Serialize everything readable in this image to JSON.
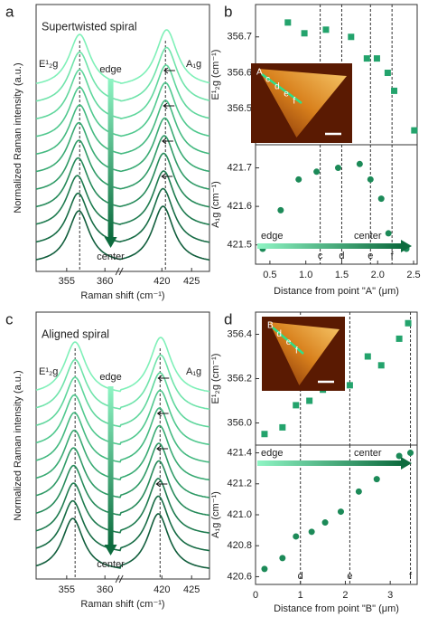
{
  "chart_data": [
    {
      "type": "spectra",
      "panel_label": "a",
      "title": "Supertwisted spiral",
      "xlabel": "Raman shift (cm⁻¹)",
      "ylabel": "Normalized Raman intensity (a.u.)",
      "peak_labels": [
        "E¹₂g",
        "A₁g"
      ],
      "annotations": [
        "edge",
        "center"
      ],
      "x_segments": [
        {
          "xlim": [
            351,
            362
          ],
          "xticks": [
            355,
            360
          ]
        },
        {
          "xlim": [
            413,
            428
          ],
          "xticks": [
            420,
            425
          ]
        }
      ],
      "dashed_lines": [
        356.7,
        420.6
      ],
      "series": [
        {
          "color": "#7ff0b8",
          "values": [
            356.7,
            420.8
          ]
        },
        {
          "color": "#6fe3aa",
          "values": [
            356.7,
            420.8
          ]
        },
        {
          "color": "#5fd69c",
          "values": [
            356.7,
            420.7
          ]
        },
        {
          "color": "#50c88e",
          "values": [
            356.7,
            420.6
          ]
        },
        {
          "color": "#44b980",
          "values": [
            356.7,
            420.6
          ]
        },
        {
          "color": "#39aa73",
          "values": [
            356.6,
            420.5
          ]
        },
        {
          "color": "#2f9a66",
          "values": [
            356.6,
            420.4
          ]
        },
        {
          "color": "#268a5a",
          "values": [
            356.5,
            420.3
          ]
        },
        {
          "color": "#1e7b4f",
          "values": [
            356.4,
            420.3
          ]
        },
        {
          "color": "#176c45",
          "values": [
            356.5,
            420.2
          ]
        },
        {
          "color": "#115e3c",
          "values": [
            356.6,
            420.2
          ]
        }
      ]
    },
    {
      "type": "scatter",
      "panel_label": "b",
      "xlabel": "Distance from point \"A\" (μm)",
      "xlim": [
        0.3,
        2.55
      ],
      "xticks": [
        0.5,
        {
          "value": 1,
          "label": "1.0"
        },
        1.5,
        {
          "value": 2,
          "label": "2.0"
        },
        2.5
      ],
      "vlines": [
        {
          "value": 1.2,
          "label": "c"
        },
        {
          "value": 1.5,
          "label": "d"
        },
        {
          "value": 1.9,
          "label": "e"
        },
        {
          "value": 2.2,
          "label": "f"
        }
      ],
      "inset_labels": [
        "A",
        "c",
        "d",
        "e",
        "f"
      ],
      "annotations": [
        "edge",
        "center"
      ],
      "subplots": [
        {
          "ylabel": "E¹₂g (cm⁻¹)",
          "ylim": [
            356.4,
            356.79
          ],
          "yticks": [
            356.5,
            356.6,
            356.7
          ],
          "marker": "square",
          "color": "#23a36c",
          "x": [
            0.75,
            0.98,
            1.28,
            1.63,
            1.85,
            1.99,
            2.14,
            2.23,
            2.51
          ],
          "values": [
            356.74,
            356.71,
            356.72,
            356.7,
            356.64,
            356.64,
            356.6,
            356.55,
            356.44
          ]
        },
        {
          "ylabel": "A₁g (cm⁻¹)",
          "ylim": [
            421.45,
            421.76
          ],
          "yticks": [
            421.5,
            421.6,
            421.7
          ],
          "marker": "circle",
          "color": "#1c8a58",
          "x": [
            0.4,
            0.65,
            0.9,
            1.15,
            1.45,
            1.75,
            1.9,
            2.05,
            2.15,
            2.4
          ],
          "values": [
            421.49,
            421.59,
            421.67,
            421.69,
            421.7,
            421.71,
            421.67,
            421.62,
            421.53,
            421.49
          ]
        }
      ]
    },
    {
      "type": "spectra",
      "panel_label": "c",
      "title": "Aligned spiral",
      "xlabel": "Raman shift (cm⁻¹)",
      "ylabel": "Normalized Raman intensity (a.u.)",
      "peak_labels": [
        "E¹₂g",
        "A₁g"
      ],
      "annotations": [
        "edge",
        "center"
      ],
      "x_segments": [
        {
          "xlim": [
            351,
            362
          ],
          "xticks": [
            355,
            360
          ]
        },
        {
          "xlim": [
            413,
            428
          ],
          "xticks": [
            420,
            425
          ]
        }
      ],
      "dashed_lines": [
        356.1,
        419.7
      ],
      "series": [
        {
          "color": "#7ff0b8",
          "values": [
            356.1,
            419.8
          ]
        },
        {
          "color": "#6fe3aa",
          "values": [
            356.1,
            419.8
          ]
        },
        {
          "color": "#5fd69c",
          "values": [
            356.1,
            419.7
          ]
        },
        {
          "color": "#50c88e",
          "values": [
            356.0,
            419.7
          ]
        },
        {
          "color": "#44b980",
          "values": [
            356.0,
            419.6
          ]
        },
        {
          "color": "#39aa73",
          "values": [
            356.0,
            419.6
          ]
        },
        {
          "color": "#2f9a66",
          "values": [
            355.9,
            419.5
          ]
        },
        {
          "color": "#268a5a",
          "values": [
            355.9,
            419.5
          ]
        },
        {
          "color": "#1e7b4f",
          "values": [
            355.9,
            419.4
          ]
        },
        {
          "color": "#176c45",
          "values": [
            355.8,
            419.4
          ]
        },
        {
          "color": "#115e3c",
          "values": [
            355.8,
            419.4
          ]
        }
      ]
    },
    {
      "type": "scatter",
      "panel_label": "d",
      "xlabel": "Distance from point \"B\" (μm)",
      "xlim": [
        0,
        3.6
      ],
      "xticks": [
        0,
        1,
        2,
        3
      ],
      "vlines": [
        {
          "value": 1.0,
          "label": "d"
        },
        {
          "value": 2.1,
          "label": "e"
        },
        {
          "value": 3.45,
          "label": "f"
        }
      ],
      "inset_labels": [
        "B",
        "d",
        "e",
        "f"
      ],
      "annotations": [
        "edge",
        "center"
      ],
      "subplots": [
        {
          "ylabel": "E¹₂g (cm⁻¹)",
          "ylim": [
            355.9,
            356.5
          ],
          "yticks": [
            {
              "value": 356,
              "label": "356.0"
            },
            356.2,
            356.4
          ],
          "marker": "square",
          "color": "#23a36c",
          "x": [
            0.2,
            0.6,
            0.9,
            1.2,
            1.5,
            1.8,
            2.1,
            2.5,
            2.8,
            3.2,
            3.4
          ],
          "values": [
            355.95,
            355.98,
            356.08,
            356.1,
            356.15,
            356.17,
            356.17,
            356.3,
            356.26,
            356.38,
            356.45
          ]
        },
        {
          "ylabel": "A₁g (cm⁻¹)",
          "ylim": [
            420.55,
            421.45
          ],
          "yticks": [
            420.6,
            420.8,
            {
              "value": 421,
              "label": "421.0"
            },
            421.2,
            421.4
          ],
          "marker": "circle",
          "color": "#1c8a58",
          "x": [
            0.2,
            0.6,
            0.9,
            1.25,
            1.55,
            1.9,
            2.3,
            2.7,
            3.2,
            3.45
          ],
          "values": [
            420.65,
            420.72,
            420.86,
            420.89,
            420.95,
            421.02,
            421.15,
            421.23,
            421.38,
            421.4
          ]
        }
      ]
    }
  ]
}
